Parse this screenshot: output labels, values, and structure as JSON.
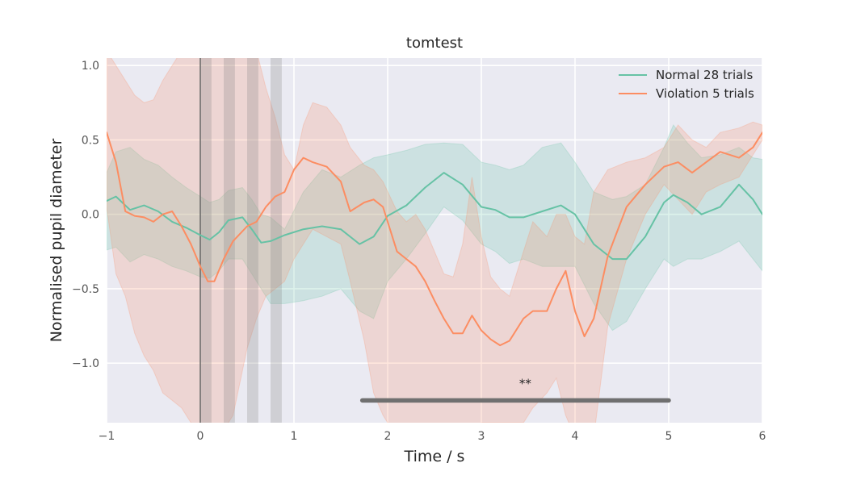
{
  "chart_data": {
    "type": "line",
    "title": "tomtest",
    "xlabel": "Time / s",
    "ylabel": "Normalised pupil diameter",
    "xlim": [
      -1,
      6
    ],
    "ylim": [
      -1.4,
      1.05
    ],
    "xticks": [
      -1,
      0,
      1,
      2,
      3,
      4,
      5,
      6
    ],
    "xtick_labels": [
      "−1",
      "0",
      "1",
      "2",
      "3",
      "4",
      "5",
      "6"
    ],
    "yticks": [
      -1.0,
      -0.5,
      0.0,
      0.5,
      1.0
    ],
    "ytick_labels": [
      "−1.0",
      "−0.5",
      "0.0",
      "0.5",
      "1.0"
    ],
    "grid": true,
    "legend_position": "top-right",
    "background": "#eaeaf2",
    "event_line_x": 0,
    "shaded_intervals": [
      [
        0,
        0.12
      ],
      [
        0.25,
        0.37
      ],
      [
        0.5,
        0.62
      ],
      [
        0.75,
        0.87
      ]
    ],
    "significance": {
      "x_start": 1.73,
      "x_end": 5.0,
      "y": -1.25,
      "label": "**"
    },
    "series": [
      {
        "name": "Normal 28 trials",
        "color": "#66c2a5",
        "x": [
          -1.0,
          -0.9,
          -0.75,
          -0.6,
          -0.45,
          -0.3,
          -0.15,
          0.0,
          0.1,
          0.2,
          0.3,
          0.45,
          0.55,
          0.65,
          0.75,
          0.9,
          1.1,
          1.3,
          1.5,
          1.7,
          1.85,
          2.0,
          2.2,
          2.4,
          2.6,
          2.8,
          3.0,
          3.15,
          3.3,
          3.45,
          3.65,
          3.85,
          4.0,
          4.2,
          4.4,
          4.55,
          4.75,
          4.95,
          5.05,
          5.2,
          5.35,
          5.55,
          5.75,
          5.9,
          6.0
        ],
        "values": [
          0.09,
          0.12,
          0.03,
          0.06,
          0.02,
          -0.05,
          -0.09,
          -0.14,
          -0.17,
          -0.12,
          -0.04,
          -0.02,
          -0.1,
          -0.19,
          -0.18,
          -0.14,
          -0.1,
          -0.08,
          -0.1,
          -0.2,
          -0.15,
          -0.01,
          0.06,
          0.18,
          0.28,
          0.2,
          0.05,
          0.03,
          -0.02,
          -0.02,
          0.02,
          0.06,
          0.0,
          -0.2,
          -0.3,
          -0.3,
          -0.15,
          0.08,
          0.13,
          0.08,
          0.0,
          0.05,
          0.2,
          0.1,
          0.0
        ],
        "band_upper": [
          0.28,
          0.42,
          0.45,
          0.37,
          0.33,
          0.25,
          0.18,
          0.12,
          0.08,
          0.1,
          0.16,
          0.18,
          0.1,
          0.0,
          -0.02,
          -0.1,
          0.15,
          0.3,
          0.25,
          0.33,
          0.38,
          0.4,
          0.43,
          0.47,
          0.48,
          0.47,
          0.35,
          0.33,
          0.3,
          0.33,
          0.45,
          0.48,
          0.35,
          0.15,
          0.1,
          0.12,
          0.2,
          0.45,
          0.6,
          0.48,
          0.38,
          0.4,
          0.45,
          0.38,
          0.37
        ],
        "band_lower": [
          -0.24,
          -0.22,
          -0.32,
          -0.27,
          -0.3,
          -0.35,
          -0.38,
          -0.42,
          -0.43,
          -0.38,
          -0.3,
          -0.3,
          -0.4,
          -0.5,
          -0.6,
          -0.6,
          -0.58,
          -0.55,
          -0.5,
          -0.65,
          -0.7,
          -0.45,
          -0.3,
          -0.13,
          0.05,
          -0.04,
          -0.2,
          -0.25,
          -0.33,
          -0.3,
          -0.35,
          -0.35,
          -0.35,
          -0.6,
          -0.78,
          -0.72,
          -0.5,
          -0.3,
          -0.35,
          -0.3,
          -0.3,
          -0.25,
          -0.18,
          -0.3,
          -0.38
        ]
      },
      {
        "name": "Violation 5 trials",
        "color": "#fc8d62",
        "x": [
          -1.0,
          -0.9,
          -0.8,
          -0.7,
          -0.6,
          -0.5,
          -0.4,
          -0.3,
          -0.2,
          -0.1,
          0.0,
          0.08,
          0.15,
          0.25,
          0.35,
          0.5,
          0.6,
          0.7,
          0.8,
          0.9,
          1.0,
          1.1,
          1.2,
          1.35,
          1.5,
          1.6,
          1.75,
          1.85,
          1.95,
          2.1,
          2.2,
          2.3,
          2.4,
          2.5,
          2.6,
          2.7,
          2.8,
          2.9,
          3.0,
          3.1,
          3.2,
          3.3,
          3.45,
          3.55,
          3.7,
          3.8,
          3.9,
          4.0,
          4.1,
          4.2,
          4.35,
          4.55,
          4.75,
          4.95,
          5.1,
          5.25,
          5.4,
          5.55,
          5.75,
          5.9,
          6.0
        ],
        "values": [
          0.55,
          0.35,
          0.02,
          -0.01,
          -0.02,
          -0.05,
          0.0,
          0.02,
          -0.08,
          -0.2,
          -0.35,
          -0.45,
          -0.45,
          -0.3,
          -0.18,
          -0.08,
          -0.05,
          0.05,
          0.12,
          0.15,
          0.3,
          0.38,
          0.35,
          0.32,
          0.22,
          0.02,
          0.08,
          0.1,
          0.05,
          -0.25,
          -0.3,
          -0.35,
          -0.45,
          -0.58,
          -0.7,
          -0.8,
          -0.8,
          -0.68,
          -0.78,
          -0.84,
          -0.88,
          -0.85,
          -0.7,
          -0.65,
          -0.65,
          -0.5,
          -0.38,
          -0.65,
          -0.82,
          -0.7,
          -0.28,
          0.05,
          0.2,
          0.32,
          0.35,
          0.28,
          0.35,
          0.42,
          0.38,
          0.45,
          0.55
        ],
        "band_upper": [
          1.1,
          1.0,
          0.9,
          0.8,
          0.75,
          0.77,
          0.9,
          1.0,
          1.1,
          1.2,
          1.25,
          1.3,
          1.35,
          1.4,
          1.45,
          1.2,
          1.1,
          0.85,
          0.65,
          0.4,
          0.3,
          0.6,
          0.75,
          0.72,
          0.6,
          0.45,
          0.33,
          0.3,
          0.22,
          0.02,
          -0.05,
          0.0,
          -0.1,
          -0.25,
          -0.4,
          -0.42,
          -0.2,
          0.25,
          -0.15,
          -0.42,
          -0.5,
          -0.55,
          -0.25,
          -0.05,
          -0.15,
          0.0,
          0.0,
          -0.15,
          -0.2,
          0.15,
          0.3,
          0.35,
          0.38,
          0.45,
          0.6,
          0.5,
          0.45,
          0.55,
          0.58,
          0.62,
          0.6
        ],
        "band_lower": [
          0.05,
          -0.4,
          -0.55,
          -0.8,
          -0.95,
          -1.05,
          -1.2,
          -1.25,
          -1.3,
          -1.4,
          -1.5,
          -1.5,
          -1.55,
          -1.45,
          -1.35,
          -0.9,
          -0.7,
          -0.55,
          -0.5,
          -0.45,
          -0.3,
          -0.2,
          -0.1,
          -0.15,
          -0.2,
          -0.45,
          -0.85,
          -1.2,
          -1.35,
          -1.5,
          -1.5,
          -1.5,
          -1.5,
          -1.5,
          -1.5,
          -1.5,
          -1.5,
          -1.45,
          -1.4,
          -1.4,
          -1.4,
          -1.4,
          -1.4,
          -1.3,
          -1.2,
          -1.1,
          -1.35,
          -1.5,
          -1.5,
          -1.5,
          -0.75,
          -0.3,
          0.0,
          0.2,
          0.1,
          0.0,
          0.15,
          0.2,
          0.25,
          0.4,
          0.5
        ]
      }
    ]
  }
}
